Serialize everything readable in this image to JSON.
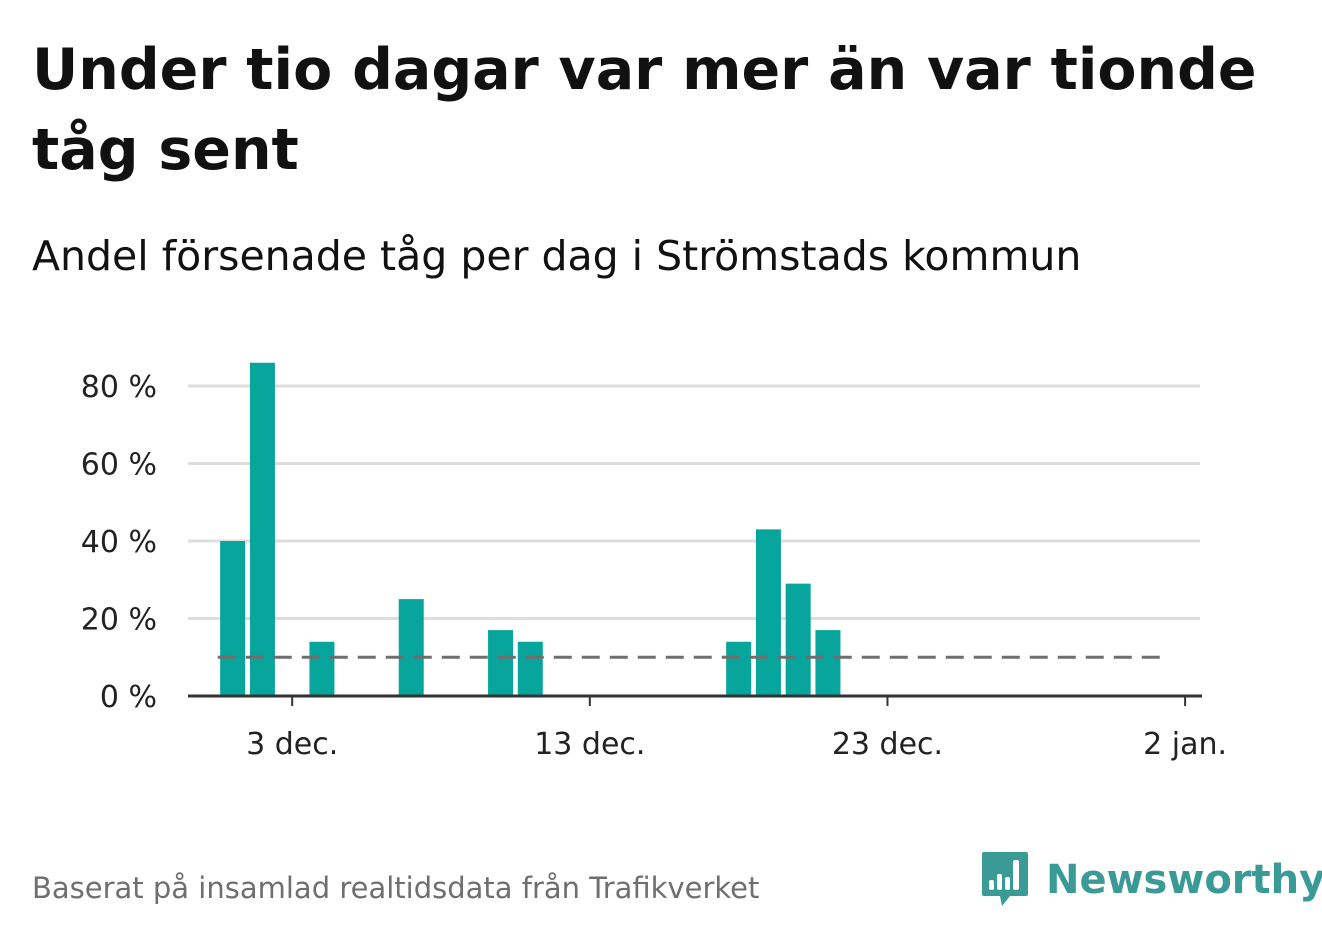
{
  "title": "Under tio dagar var mer än var tionde tåg sent",
  "subtitle": "Andel försenade tåg per dag i Strömstads kommun",
  "footer": "Baserat på insamlad realtidsdata från Trafikverket",
  "brand": "Newsworthy",
  "colors": {
    "bar": "#08a59c",
    "grid": "#dddddd",
    "axis": "#333333",
    "reference": "#6e6e6e",
    "brand": "#3a9a96"
  },
  "chart_data": {
    "type": "bar",
    "title": "Andel försenade tåg per dag i Strömstads kommun",
    "xlabel": "",
    "ylabel": "",
    "ylim": [
      0,
      80
    ],
    "x_day_range": [
      -1.5,
      32.5
    ],
    "y_ticks": [
      0,
      20,
      40,
      60,
      80
    ],
    "y_tick_labels": [
      "0 %",
      "20 %",
      "40 %",
      "60 %",
      "80 %"
    ],
    "x_ticks": [
      {
        "day": 2,
        "label": "3 dec."
      },
      {
        "day": 12,
        "label": "13 dec."
      },
      {
        "day": 22,
        "label": "23 dec."
      },
      {
        "day": 32,
        "label": "2 jan."
      }
    ],
    "x_day_origin": "1 dec. = day 0",
    "bars": [
      {
        "day": 0,
        "date": "1 dec.",
        "value": 40
      },
      {
        "day": 1,
        "date": "2 dec.",
        "value": 86
      },
      {
        "day": 3,
        "date": "4 dec.",
        "value": 14
      },
      {
        "day": 6,
        "date": "7 dec.",
        "value": 25
      },
      {
        "day": 9,
        "date": "10 dec.",
        "value": 17
      },
      {
        "day": 10,
        "date": "11 dec.",
        "value": 14
      },
      {
        "day": 17,
        "date": "18 dec.",
        "value": 14
      },
      {
        "day": 18,
        "date": "19 dec.",
        "value": 43
      },
      {
        "day": 19,
        "date": "20 dec.",
        "value": 29
      },
      {
        "day": 20,
        "date": "21 dec.",
        "value": 17
      }
    ],
    "reference_line": {
      "value": 10,
      "from_day": -0.5,
      "to_day": 31.2,
      "style": "dashed"
    },
    "grid": true,
    "legend": "none"
  }
}
